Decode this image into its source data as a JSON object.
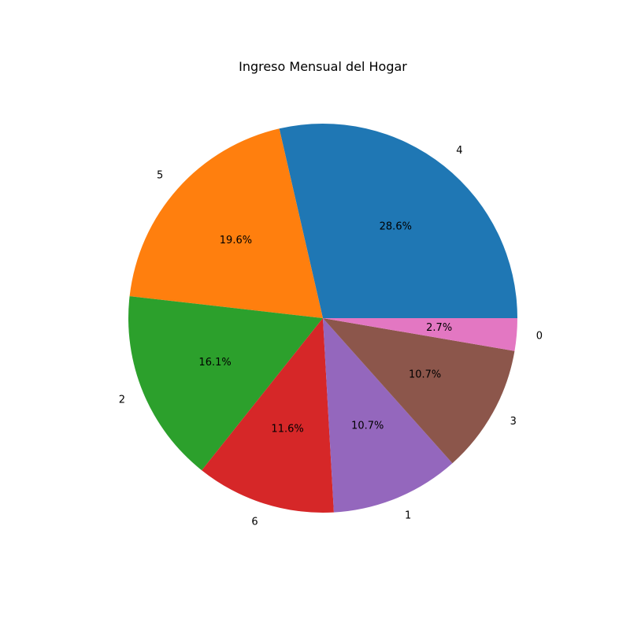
{
  "chart_data": {
    "type": "pie",
    "title": "Ingreso Mensual del Hogar",
    "start_angle_deg": 0,
    "direction": "counterclockwise",
    "slices": [
      {
        "label": "4",
        "percent": 28.6,
        "percent_label": "28.6%",
        "color": "#1f77b4"
      },
      {
        "label": "5",
        "percent": 19.6,
        "percent_label": "19.6%",
        "color": "#ff7f0e"
      },
      {
        "label": "2",
        "percent": 16.1,
        "percent_label": "16.1%",
        "color": "#2ca02c"
      },
      {
        "label": "6",
        "percent": 11.6,
        "percent_label": "11.6%",
        "color": "#d62728"
      },
      {
        "label": "1",
        "percent": 10.7,
        "percent_label": "10.7%",
        "color": "#9467bd"
      },
      {
        "label": "3",
        "percent": 10.7,
        "percent_label": "10.7%",
        "color": "#8c564b"
      },
      {
        "label": "0",
        "percent": 2.7,
        "percent_label": "2.7%",
        "color": "#e377c2"
      }
    ]
  }
}
